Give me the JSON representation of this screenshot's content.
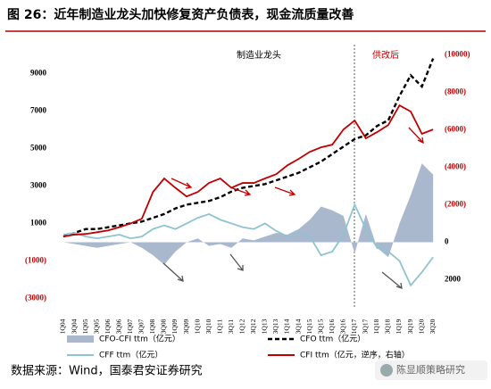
{
  "chart_data": {
    "type": "line",
    "title": "图 26：近年制造业龙头加快修复资产负债表，现金流质量改善",
    "annotations": [
      "制造业龙头",
      "供改后"
    ],
    "source": "数据来源：Wind，国泰君安证券研究",
    "watermark": "陈显顺策略研究",
    "categories": [
      "1Q04",
      "3Q04",
      "1Q05",
      "3Q05",
      "1Q06",
      "3Q06",
      "1Q07",
      "3Q07",
      "1Q08",
      "3Q08",
      "1Q09",
      "3Q09",
      "1Q10",
      "3Q10",
      "1Q11",
      "3Q11",
      "1Q12",
      "3Q12",
      "1Q13",
      "3Q13",
      "1Q14",
      "3Q14",
      "1Q15",
      "3Q15",
      "1Q16",
      "3Q16",
      "1Q17",
      "3Q17",
      "1Q18",
      "3Q18",
      "1Q19",
      "3Q19",
      "1Q20",
      "3Q20"
    ],
    "ylim": [
      -3500,
      10300
    ],
    "yticks": [
      {
        "value": -3000,
        "label": "(3000)"
      },
      {
        "value": -1000,
        "label": "(1000)"
      },
      1000,
      3000,
      5000,
      7000,
      9000
    ],
    "y2lim": [
      -10300,
      3500
    ],
    "y2_reversed": true,
    "y2ticks": [
      {
        "value": -10000,
        "label": "(10000)"
      },
      {
        "value": -8000,
        "label": "(8000)"
      },
      {
        "value": -6000,
        "label": "(6000)"
      },
      {
        "value": -4000,
        "label": "(4000)"
      },
      {
        "value": -2000,
        "label": "(2000)"
      },
      0,
      2000
    ],
    "series": [
      {
        "name": "CFO-CFI ttm（亿元）",
        "type": "area",
        "color": "#a9b8cc",
        "values": [
          0,
          -100,
          -200,
          -300,
          -200,
          -100,
          0,
          -300,
          -700,
          -1200,
          -500,
          0,
          200,
          -200,
          -100,
          -300,
          200,
          100,
          300,
          500,
          400,
          700,
          1200,
          1900,
          1700,
          1400,
          -600,
          1500,
          -300,
          -800,
          1000,
          2500,
          4200,
          3600
        ]
      },
      {
        "name": "CFO ttm（亿元）",
        "type": "dashed",
        "color": "#000000",
        "values": [
          300,
          500,
          700,
          700,
          800,
          900,
          1000,
          1100,
          1300,
          1500,
          1800,
          2000,
          2100,
          2200,
          2400,
          2700,
          2900,
          3000,
          3100,
          3300,
          3500,
          3700,
          4000,
          4300,
          4700,
          5100,
          5500,
          5700,
          6200,
          6500,
          7800,
          8900,
          8300,
          9800
        ]
      },
      {
        "name": "CFF ttm（亿元）",
        "type": "line",
        "color": "#8fc3d1",
        "values": [
          400,
          500,
          300,
          200,
          300,
          400,
          200,
          300,
          700,
          900,
          700,
          1000,
          1300,
          1500,
          1200,
          1000,
          800,
          700,
          1000,
          600,
          300,
          500,
          300,
          -700,
          -500,
          400,
          2000,
          700,
          -300,
          -500,
          -1000,
          -2300,
          -1600,
          -800
        ]
      },
      {
        "name": "CFI ttm（亿元，逆序，右轴）",
        "type": "line",
        "axis": "y2",
        "color": "#c00000",
        "values": [
          -300,
          -400,
          -440,
          -530,
          -630,
          -800,
          -1000,
          -1250,
          -2680,
          -3400,
          -2900,
          -2440,
          -2680,
          -3160,
          -3400,
          -2900,
          -3160,
          -3160,
          -3400,
          -3630,
          -4100,
          -4440,
          -4820,
          -5060,
          -5200,
          -6010,
          -6490,
          -5540,
          -5870,
          -6250,
          -7300,
          -6970,
          -5780,
          -6010
        ]
      }
    ]
  }
}
